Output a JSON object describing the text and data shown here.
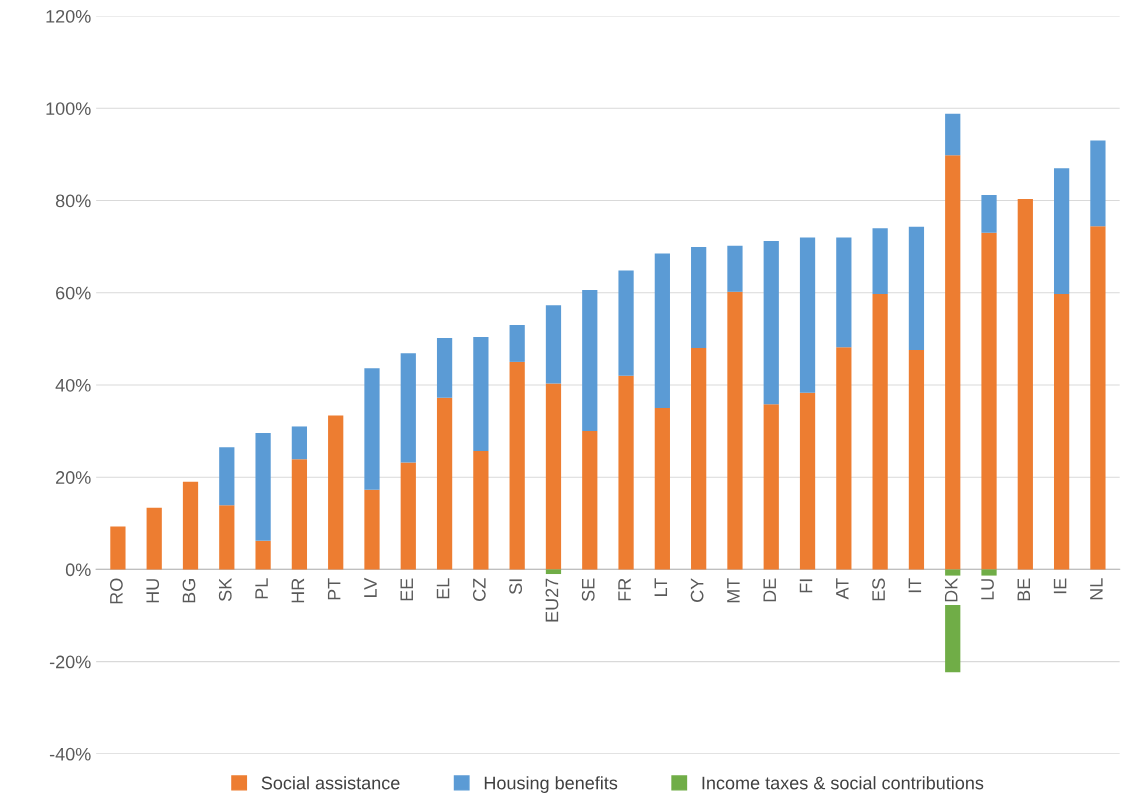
{
  "chart_data": {
    "type": "bar",
    "stacked": true,
    "categories": [
      "RO",
      "HU",
      "BG",
      "SK",
      "PL",
      "HR",
      "PT",
      "LV",
      "EE",
      "EL",
      "CZ",
      "SI",
      "EU27",
      "SE",
      "FR",
      "LT",
      "CY",
      "MT",
      "DE",
      "FI",
      "AT",
      "ES",
      "IT",
      "DK",
      "LU",
      "BE",
      "IE",
      "NL"
    ],
    "series": [
      {
        "name": "Social assistance",
        "color": "#ed7d31",
        "values": [
          9.3,
          13.4,
          19,
          13.9,
          6.2,
          23.9,
          33.4,
          17.3,
          23.2,
          37.2,
          25.7,
          45,
          40.3,
          30,
          42,
          35,
          48,
          60.2,
          35.8,
          38.3,
          48.2,
          59.7,
          47.6,
          89.8,
          73,
          80.3,
          59.7,
          74.4
        ]
      },
      {
        "name": "Housing benefits",
        "color": "#5b9bd5",
        "values": [
          0,
          0,
          0,
          12.6,
          23.4,
          7.1,
          0,
          26.3,
          23.7,
          13,
          24.7,
          8,
          17,
          30.6,
          22.8,
          33.5,
          21.9,
          10,
          35.4,
          33.7,
          23.8,
          14.3,
          26.7,
          9,
          8.2,
          0,
          27.3,
          18.6
        ]
      },
      {
        "name": "Income taxes & social contributions",
        "color": "#70ad47",
        "values": [
          0,
          0,
          0,
          0,
          0,
          0,
          0,
          0,
          0,
          0,
          0,
          0,
          -1,
          0,
          0,
          0,
          0,
          0,
          0,
          0,
          0,
          0,
          0,
          -22.3,
          -1.5,
          0,
          0,
          0
        ]
      }
    ],
    "ylim": [
      -40,
      120
    ],
    "yticks": [
      {
        "value": -40,
        "label": "-40%"
      },
      {
        "value": -20,
        "label": "-20%"
      },
      {
        "value": 0,
        "label": "0%"
      },
      {
        "value": 20,
        "label": "20%"
      },
      {
        "value": 40,
        "label": "40%"
      },
      {
        "value": 60,
        "label": "60%"
      },
      {
        "value": 80,
        "label": "80%"
      },
      {
        "value": 100,
        "label": "100%"
      },
      {
        "value": 120,
        "label": "120%"
      }
    ],
    "grid": "y",
    "legend": "bottom"
  }
}
